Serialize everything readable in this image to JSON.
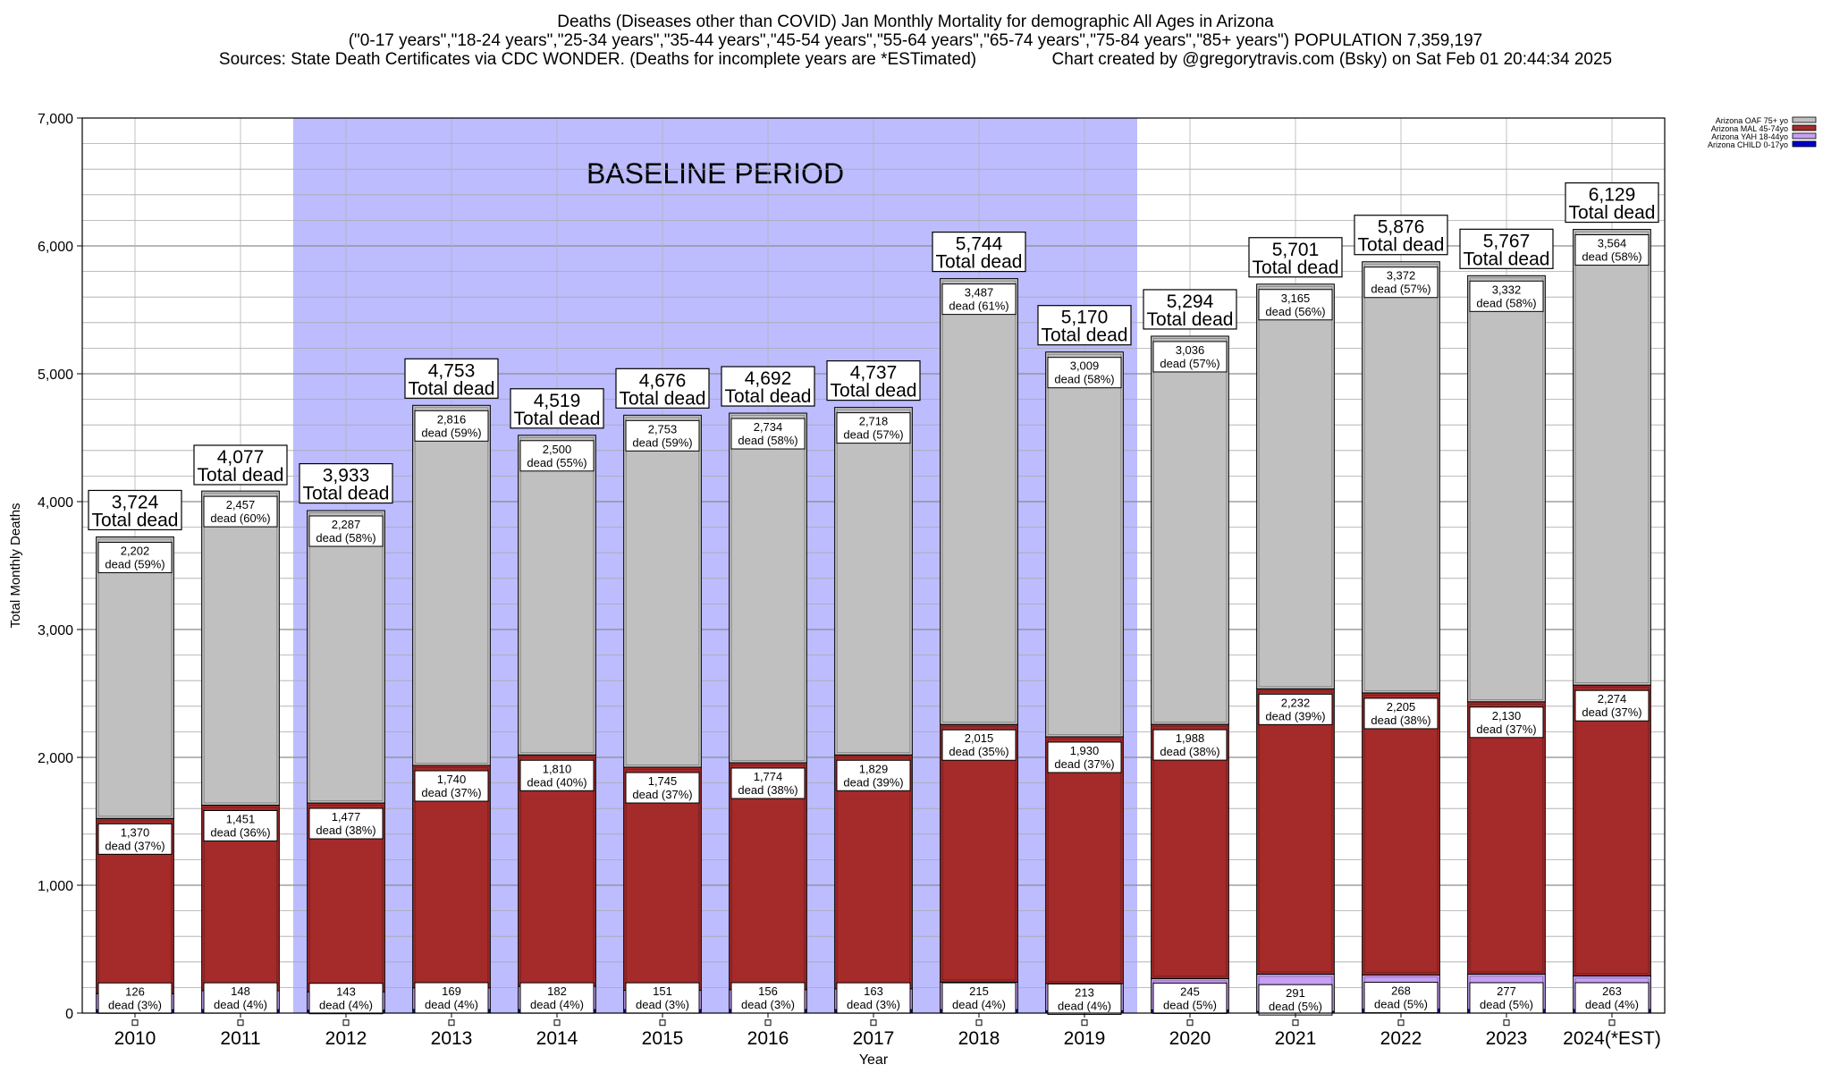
{
  "chart_data": {
    "type": "bar",
    "stacked": true,
    "title": [
      "Deaths (Diseases other than COVID) Jan Monthly Mortality for demographic All Ages in Arizona",
      "(\"0-17 years\",\"18-24 years\",\"25-34 years\",\"35-44 years\",\"45-54 years\",\"55-64 years\",\"65-74 years\",\"75-84 years\",\"85+ years\") POPULATION 7,359,197",
      "Sources: State Death Certificates via CDC WONDER. (Deaths for incomplete years are *ESTimated)                Chart created by @gregorytravis.com (Bsky) on Sat Feb 01 20:44:34 2025"
    ],
    "xlabel": "Year",
    "ylabel": "Total Monthly Deaths",
    "ylim": [
      0,
      7000
    ],
    "yticks": [
      0,
      1000,
      2000,
      3000,
      4000,
      5000,
      6000,
      7000
    ],
    "ytick_labels": [
      "0",
      "1,000",
      "2,000",
      "3,000",
      "4,000",
      "5,000",
      "6,000",
      "7,000"
    ],
    "grid": true,
    "legend_position": "top-right",
    "baseline_label": "BASELINE PERIOD",
    "baseline_categories": [
      "2012",
      "2019"
    ],
    "total_label_suffix": "Total dead",
    "categories": [
      "2010",
      "2011",
      "2012",
      "2013",
      "2014",
      "2015",
      "2016",
      "2017",
      "2018",
      "2019",
      "2020",
      "2021",
      "2022",
      "2023",
      "2024(*EST)"
    ],
    "totals": [
      3724,
      4077,
      3933,
      4753,
      4519,
      4676,
      4692,
      4737,
      5744,
      5170,
      5294,
      5701,
      5876,
      5767,
      6129
    ],
    "total_labels": [
      "3,724",
      "4,077",
      "3,933",
      "4,753",
      "4,519",
      "4,676",
      "4,692",
      "4,737",
      "5,744",
      "5,170",
      "5,294",
      "5,701",
      "5,876",
      "5,767",
      "6,129"
    ],
    "series": [
      {
        "name": "Arizona CHILD 0-17yo",
        "color": "#0000cc",
        "values": [
          26,
          27,
          23,
          28,
          27,
          27,
          28,
          27,
          27,
          18,
          25,
          13,
          31,
          28,
          28
        ]
      },
      {
        "name": "Arizona YAH 18-44yo",
        "color": "#c7a0f5",
        "values": [
          126,
          148,
          143,
          169,
          182,
          151,
          156,
          163,
          215,
          213,
          245,
          291,
          268,
          277,
          263
        ],
        "labels": [
          "126",
          "148",
          "143",
          "169",
          "182",
          "151",
          "156",
          "163",
          "215",
          "213",
          "245",
          "291",
          "268",
          "277",
          "263"
        ],
        "pct_labels": [
          "dead (3%)",
          "dead (4%)",
          "dead (4%)",
          "dead (4%)",
          "dead (4%)",
          "dead (3%)",
          "dead (3%)",
          "dead (3%)",
          "dead (4%)",
          "dead (4%)",
          "dead (5%)",
          "dead (5%)",
          "dead (5%)",
          "dead (5%)",
          "dead (4%)"
        ]
      },
      {
        "name": "Arizona MAL 45-74yo",
        "color": "#a52a2a",
        "values": [
          1370,
          1451,
          1477,
          1740,
          1810,
          1745,
          1774,
          1829,
          2015,
          1930,
          1988,
          2232,
          2205,
          2130,
          2274
        ],
        "labels": [
          "1,370",
          "1,451",
          "1,477",
          "1,740",
          "1,810",
          "1,745",
          "1,774",
          "1,829",
          "2,015",
          "1,930",
          "1,988",
          "2,232",
          "2,205",
          "2,130",
          "2,274"
        ],
        "pct_labels": [
          "dead (37%)",
          "dead (36%)",
          "dead (38%)",
          "dead (37%)",
          "dead (40%)",
          "dead (37%)",
          "dead (38%)",
          "dead (39%)",
          "dead (35%)",
          "dead (37%)",
          "dead (38%)",
          "dead (39%)",
          "dead (38%)",
          "dead (37%)",
          "dead (37%)"
        ]
      },
      {
        "name": "Arizona OAF 75+ yo",
        "color": "#c0c0c0",
        "values": [
          2202,
          2457,
          2287,
          2816,
          2500,
          2753,
          2734,
          2718,
          3487,
          3009,
          3036,
          3165,
          3372,
          3332,
          3564
        ],
        "labels": [
          "2,202",
          "2,457",
          "2,287",
          "2,816",
          "2,500",
          "2,753",
          "2,734",
          "2,718",
          "3,487",
          "3,009",
          "3,036",
          "3,165",
          "3,372",
          "3,332",
          "3,564"
        ],
        "pct_labels": [
          "dead (59%)",
          "dead (60%)",
          "dead (58%)",
          "dead (59%)",
          "dead (55%)",
          "dead (59%)",
          "dead (58%)",
          "dead (57%)",
          "dead (61%)",
          "dead (58%)",
          "dead (57%)",
          "dead (56%)",
          "dead (57%)",
          "dead (58%)",
          "dead (58%)"
        ]
      }
    ]
  }
}
